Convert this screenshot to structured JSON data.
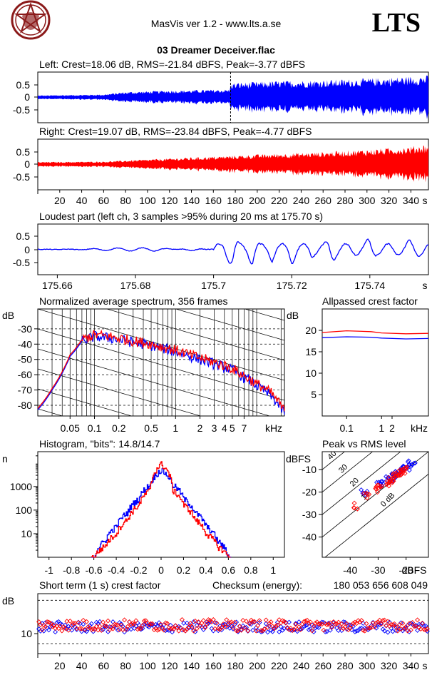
{
  "header": {
    "app_title": "MasVis ver 1.2 - www.lts.a.se",
    "brand": "LTS",
    "file_title": "03 Dreamer Deceiver.flac",
    "logo_icon": "pentagram-logo-icon"
  },
  "colors": {
    "left": "#0000ff",
    "right": "#ff0000",
    "grid": "#000000"
  },
  "chart_data": [
    {
      "id": "left",
      "type": "line",
      "title": "Left: Crest=18.06 dB, RMS=-21.84 dBFS, Peak=-3.77 dBFS",
      "ylim": [
        -1,
        1
      ],
      "yticks": [
        "0.5",
        "0",
        "-0.5"
      ],
      "xlim": [
        0,
        356
      ],
      "marker_x": 175.7,
      "series": [
        {
          "x": [
            0,
            60,
            80,
            120,
            175,
            176,
            220,
            280,
            320,
            356
          ],
          "y": [
            0.08,
            0.12,
            0.22,
            0.28,
            0.32,
            0.58,
            0.66,
            0.72,
            0.8,
            0.88
          ]
        }
      ]
    },
    {
      "id": "right",
      "type": "line",
      "title": "Right: Crest=19.07 dB, RMS=-23.84 dBFS, Peak=-4.77 dBFS",
      "ylim": [
        -1,
        1
      ],
      "yticks": [
        "0.5",
        "0",
        "-0.5"
      ],
      "xlim": [
        0,
        356
      ],
      "xticks": [
        "20",
        "40",
        "60",
        "80",
        "100",
        "120",
        "140",
        "160",
        "180",
        "200",
        "220",
        "240",
        "260",
        "280",
        "300",
        "320",
        "340",
        "s"
      ],
      "series": [
        {
          "x": [
            0,
            60,
            100,
            150,
            200,
            260,
            300,
            340,
            356
          ],
          "y": [
            0.1,
            0.12,
            0.2,
            0.3,
            0.4,
            0.5,
            0.6,
            0.72,
            0.82
          ]
        }
      ]
    },
    {
      "id": "loudest",
      "type": "line",
      "title": "Loudest part (left  ch, 3 samples >95% during 20 ms at 175.70 s)",
      "ylim": [
        -0.9,
        0.9
      ],
      "yticks": [
        "0.5",
        "0",
        "-0.5"
      ],
      "xlim": [
        175.655,
        175.755
      ],
      "xticks": [
        "175.66",
        "175.68",
        "175.7",
        "175.72",
        "175.74",
        "s"
      ],
      "xtick_values": [
        175.66,
        175.68,
        175.7,
        175.72,
        175.74
      ],
      "series": [
        {
          "x": [
            175.655,
            175.665,
            175.675,
            175.685,
            175.695,
            175.7,
            175.705,
            175.71,
            175.715,
            175.72,
            175.725,
            175.73,
            175.735,
            175.74,
            175.745,
            175.75,
            175.755
          ],
          "y": [
            0.0,
            0.02,
            0.1,
            0.12,
            -0.1,
            0.05,
            -0.62,
            0.6,
            -0.45,
            0.55,
            -0.38,
            0.52,
            -0.3,
            0.45,
            -0.22,
            0.35,
            0.15
          ]
        }
      ]
    },
    {
      "id": "spectrum",
      "type": "line",
      "title": "Normalized average spectrum, 356 frames",
      "ylabel": "dB",
      "xlabel": "kHz",
      "yticks": [
        "-30",
        "-40",
        "-50",
        "-60",
        "-70",
        "-80"
      ],
      "ytick_values": [
        -30,
        -40,
        -50,
        -60,
        -70,
        -80
      ],
      "ylim": [
        -87,
        -17
      ],
      "xlim": [
        0.02,
        22
      ],
      "xticks": [
        "0.05",
        "0.1",
        "0.2",
        "0.5",
        "1",
        "2",
        "3",
        "4",
        "5",
        "7",
        "kHz"
      ],
      "xtick_values": [
        0.05,
        0.1,
        0.2,
        0.5,
        1,
        2,
        3,
        4,
        5,
        7
      ],
      "series": [
        {
          "name": "left",
          "x": [
            0.02,
            0.03,
            0.05,
            0.07,
            0.1,
            0.15,
            0.2,
            0.3,
            0.5,
            0.7,
            1,
            1.5,
            2,
            3,
            5,
            7,
            10,
            15,
            22
          ],
          "y": [
            -83,
            -70,
            -48,
            -38,
            -35,
            -36,
            -37,
            -39,
            -41,
            -43,
            -45,
            -48,
            -50,
            -53,
            -57,
            -62,
            -67,
            -74,
            -85
          ]
        },
        {
          "name": "right",
          "x": [
            0.02,
            0.03,
            0.05,
            0.07,
            0.1,
            0.15,
            0.2,
            0.3,
            0.5,
            0.7,
            1,
            1.5,
            2,
            3,
            5,
            7,
            10,
            15,
            22
          ],
          "y": [
            -82,
            -69,
            -47,
            -37,
            -34,
            -35,
            -36,
            -38,
            -40,
            -42,
            -44,
            -47,
            -49,
            -52,
            -56,
            -61,
            -66,
            -72,
            -84
          ]
        }
      ]
    },
    {
      "id": "allpassed",
      "type": "line",
      "title": "Allpassed crest factor",
      "ylabel": "dB",
      "yticks": [
        "20",
        "15",
        "10",
        "5"
      ],
      "ytick_values": [
        20,
        15,
        10,
        5
      ],
      "ylim": [
        0,
        25
      ],
      "xlim": [
        0.02,
        22
      ],
      "xticks": [
        "0.1",
        "1",
        "2",
        "kHz"
      ],
      "xtick_values": [
        0.1,
        1,
        2
      ],
      "series": [
        {
          "name": "left",
          "x": [
            0.02,
            0.1,
            0.5,
            1,
            5,
            22
          ],
          "y": [
            18.3,
            18.5,
            18.4,
            18.2,
            18.0,
            18.1
          ]
        },
        {
          "name": "right",
          "x": [
            0.02,
            0.1,
            0.5,
            1,
            5,
            22
          ],
          "y": [
            19.5,
            19.9,
            19.7,
            19.4,
            19.2,
            19.3
          ]
        }
      ]
    },
    {
      "id": "histogram",
      "type": "line",
      "title": "Histogram, \"bits\": 14.8/14.7",
      "ylabel": "n",
      "yscale": "log",
      "yticks": [
        "1000",
        "100",
        "10"
      ],
      "ytick_values": [
        1000,
        100,
        10
      ],
      "ylim": [
        1,
        30000
      ],
      "xlim": [
        -1.1,
        1.1
      ],
      "xticks": [
        "-1",
        "-0.8",
        "-0.6",
        "-0.4",
        "-0.2",
        "0",
        "0.2",
        "0.4",
        "0.6",
        "0.8",
        "1"
      ],
      "xtick_values": [
        -1,
        -0.8,
        -0.6,
        -0.4,
        -0.2,
        0,
        0.2,
        0.4,
        0.6,
        0.8,
        1
      ],
      "series": [
        {
          "name": "left",
          "x": [
            -0.6,
            -0.5,
            -0.4,
            -0.3,
            -0.2,
            -0.1,
            0,
            0.1,
            0.2,
            0.3,
            0.4,
            0.5,
            0.6
          ],
          "y": [
            1,
            5,
            20,
            80,
            300,
            1200,
            5000,
            1200,
            300,
            80,
            20,
            5,
            1
          ]
        },
        {
          "name": "right",
          "x": [
            -0.6,
            -0.5,
            -0.4,
            -0.3,
            -0.2,
            -0.1,
            0,
            0.1,
            0.2,
            0.3,
            0.4,
            0.5,
            0.6
          ],
          "y": [
            1,
            3,
            10,
            40,
            160,
            700,
            9000,
            700,
            160,
            40,
            10,
            3,
            1
          ]
        }
      ]
    },
    {
      "id": "peak_rms",
      "type": "scatter",
      "title": "Peak vs RMS level",
      "ylabel": "dBFS",
      "xlabel": "dBFS",
      "yticks": [
        "-10",
        "-20",
        "-30",
        "-40"
      ],
      "ytick_values": [
        -10,
        -20,
        -30,
        -40
      ],
      "ylim": [
        -49,
        -2
      ],
      "xlim": [
        -50,
        -12
      ],
      "xticks": [
        "-40",
        "-30",
        "-20",
        "dBFS"
      ],
      "xtick_values": [
        -40,
        -30,
        -20
      ],
      "diag_labels": [
        "40",
        "30",
        "20",
        "10",
        "0 dB"
      ],
      "series": [
        {
          "name": "left",
          "x": [
            -35,
            -30,
            -28,
            -26,
            -25,
            -24,
            -23,
            -22,
            -21,
            -20,
            -19,
            -18
          ],
          "y": [
            -20,
            -17,
            -16,
            -14,
            -13,
            -12,
            -11,
            -11,
            -10,
            -9,
            -8,
            -7
          ]
        },
        {
          "name": "right",
          "x": [
            -38,
            -34,
            -31,
            -29,
            -27,
            -26,
            -25,
            -24,
            -23,
            -22,
            -21,
            -20
          ],
          "y": [
            -26,
            -22,
            -19,
            -17,
            -16,
            -15,
            -14,
            -13,
            -12,
            -12,
            -11,
            -10
          ]
        }
      ]
    },
    {
      "id": "short_term",
      "type": "scatter",
      "title": "Short term (1 s) crest factor",
      "checksum_label": "Checksum (energy):",
      "checksum_value": "180 053 656 608 049",
      "ylabel": "dB",
      "yticks": [
        "10"
      ],
      "ytick_values": [
        10
      ],
      "ylim": [
        4,
        22
      ],
      "xlim": [
        0,
        356
      ],
      "xticks": [
        "20",
        "40",
        "60",
        "80",
        "100",
        "120",
        "140",
        "160",
        "180",
        "200",
        "220",
        "240",
        "260",
        "280",
        "300",
        "320",
        "340",
        "s"
      ],
      "series": [
        {
          "name": "left",
          "mean": 12.0,
          "spread": 1.6
        },
        {
          "name": "right",
          "mean": 12.5,
          "spread": 1.7
        }
      ]
    }
  ]
}
